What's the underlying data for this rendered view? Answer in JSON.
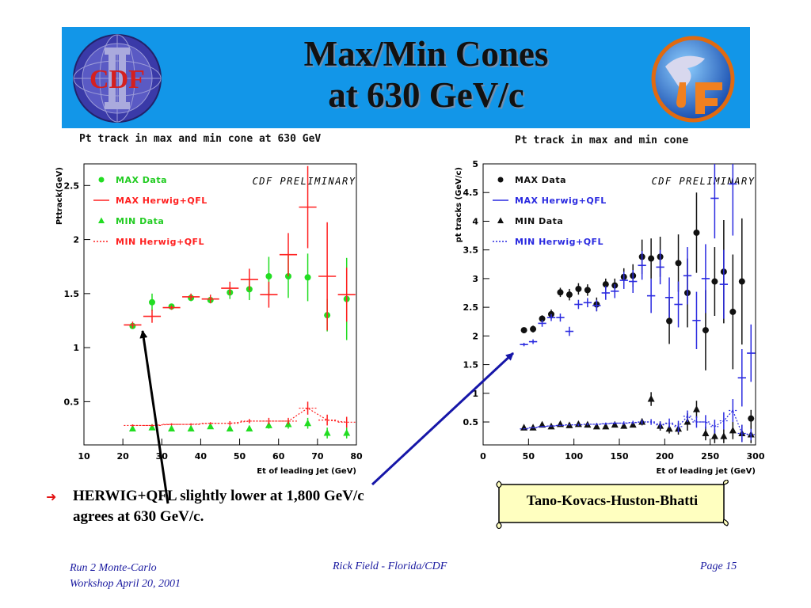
{
  "slide": {
    "title_line1": "Max/Min Cones",
    "title_line2": "at 630 GeV/c",
    "logo_left_text": "CDF",
    "bullet_line1": "HERWIG+QFL slightly lower at 1,800 GeV/c",
    "bullet_line2": "agrees at 630 GeV/c.",
    "scroll_label": "Tano-Kovacs-Huston-Bhatti",
    "footer_left_line1": "Run 2 Monte-Carlo",
    "footer_left_line2": "Workshop April 20, 2001",
    "footer_center": "Rick Field - Florida/CDF",
    "footer_right": "Page 15",
    "colors": {
      "banner": "#1296e8",
      "bullet": "#e31313",
      "footer": "#1a1aa0"
    }
  },
  "chart_data": [
    {
      "type": "scatter",
      "title": "Pt track in max and min cone at 630 GeV",
      "xlabel": "Et of leading Jet (GeV)",
      "ylabel": "Pttrack(GeV)",
      "annotation": "CDF PRELIMINARY",
      "xlim": [
        10,
        80
      ],
      "ylim": [
        0.1,
        2.7
      ],
      "xticks": [
        10,
        20,
        30,
        40,
        50,
        60,
        70,
        80
      ],
      "yticks": [
        0.5,
        1,
        1.5,
        2,
        2.5
      ],
      "legend": "top-left",
      "series": [
        {
          "name": "MAX Data",
          "color": "#22dd22",
          "marker": "circle",
          "style": "data",
          "x": [
            22.5,
            27.5,
            32.5,
            37.5,
            42.5,
            47.5,
            52.5,
            57.5,
            62.5,
            67.5,
            72.5,
            77.5
          ],
          "y": [
            1.2,
            1.42,
            1.38,
            1.46,
            1.44,
            1.51,
            1.54,
            1.66,
            1.66,
            1.65,
            1.3,
            1.45
          ],
          "err": [
            0.02,
            0.08,
            0.02,
            0.03,
            0.03,
            0.06,
            0.1,
            0.18,
            0.2,
            0.22,
            0.15,
            0.38
          ]
        },
        {
          "name": "MAX Herwig+QFL",
          "color": "#ff2020",
          "marker": "cross",
          "style": "solid",
          "x": [
            22.5,
            27.5,
            32.5,
            37.5,
            42.5,
            47.5,
            52.5,
            57.5,
            62.5,
            67.5,
            72.5,
            77.5
          ],
          "y": [
            1.21,
            1.29,
            1.37,
            1.47,
            1.45,
            1.55,
            1.63,
            1.49,
            1.86,
            2.3,
            1.66,
            1.49
          ],
          "err": [
            0.03,
            0.06,
            0.02,
            0.03,
            0.04,
            0.06,
            0.1,
            0.12,
            0.2,
            0.38,
            0.5,
            0.25
          ]
        },
        {
          "name": "MIN Data",
          "color": "#22dd22",
          "marker": "triangle",
          "style": "data",
          "x": [
            22.5,
            27.5,
            32.5,
            37.5,
            42.5,
            47.5,
            52.5,
            57.5,
            62.5,
            67.5,
            72.5,
            77.5
          ],
          "y": [
            0.25,
            0.26,
            0.25,
            0.25,
            0.27,
            0.25,
            0.25,
            0.28,
            0.29,
            0.3,
            0.21,
            0.21
          ],
          "err": [
            0.01,
            0.01,
            0.01,
            0.01,
            0.02,
            0.02,
            0.02,
            0.03,
            0.04,
            0.05,
            0.05,
            0.05
          ]
        },
        {
          "name": "MIN Herwig+QFL",
          "color": "#ff2020",
          "marker": "cross",
          "style": "dotted",
          "x": [
            22.5,
            27.5,
            32.5,
            37.5,
            42.5,
            47.5,
            52.5,
            57.5,
            62.5,
            67.5,
            72.5,
            77.5
          ],
          "y": [
            0.28,
            0.28,
            0.29,
            0.29,
            0.3,
            0.3,
            0.32,
            0.32,
            0.32,
            0.44,
            0.33,
            0.31
          ],
          "err": [
            0.01,
            0.01,
            0.01,
            0.01,
            0.01,
            0.02,
            0.02,
            0.03,
            0.03,
            0.06,
            0.05,
            0.05
          ]
        }
      ]
    },
    {
      "type": "scatter",
      "title": "Pt track in max and min cone",
      "xlabel": "Et of leading jet (GeV)",
      "ylabel": "pt tracks (GeV/c)",
      "annotation": "CDF PRELIMINARY",
      "xlim": [
        0,
        300
      ],
      "ylim": [
        0.1,
        5
      ],
      "xticks": [
        0,
        50,
        100,
        150,
        200,
        250,
        300
      ],
      "yticks": [
        0.5,
        1,
        1.5,
        2,
        2.5,
        3,
        3.5,
        4,
        4.5,
        5
      ],
      "legend": "top-left",
      "series": [
        {
          "name": "MAX Data",
          "color": "#111111",
          "marker": "circle",
          "style": "data",
          "x": [
            45,
            55,
            65,
            75,
            85,
            95,
            105,
            115,
            125,
            135,
            145,
            155,
            165,
            175,
            185,
            195,
            205,
            215,
            225,
            235,
            245,
            255,
            265,
            275,
            285,
            295
          ],
          "y": [
            2.1,
            2.12,
            2.3,
            2.38,
            2.76,
            2.72,
            2.82,
            2.8,
            2.55,
            2.9,
            2.88,
            3.03,
            3.05,
            3.38,
            3.35,
            3.38,
            2.26,
            3.27,
            2.75,
            3.8,
            2.1,
            2.95,
            3.12,
            2.42,
            2.95,
            0.56
          ],
          "err": [
            0.03,
            0.06,
            0.06,
            0.08,
            0.08,
            0.1,
            0.1,
            0.1,
            0.12,
            0.1,
            0.12,
            0.15,
            0.2,
            0.3,
            0.35,
            0.35,
            0.4,
            0.5,
            0.6,
            0.7,
            0.7,
            0.6,
            0.9,
            1.0,
            1.1,
            0.15
          ]
        },
        {
          "name": "MAX Herwig+QFL",
          "color": "#2a2ae0",
          "marker": "cross",
          "style": "solid",
          "x": [
            45,
            55,
            65,
            75,
            85,
            95,
            105,
            115,
            125,
            135,
            145,
            155,
            165,
            175,
            185,
            195,
            205,
            215,
            225,
            235,
            245,
            255,
            265,
            275,
            285,
            295
          ],
          "y": [
            1.85,
            1.9,
            2.22,
            2.32,
            2.32,
            2.08,
            2.55,
            2.58,
            2.53,
            2.75,
            2.78,
            2.97,
            2.95,
            3.23,
            2.7,
            3.2,
            2.67,
            2.55,
            3.05,
            2.27,
            3.0,
            4.4,
            2.9,
            4.65,
            1.27,
            1.7
          ],
          "err": [
            0.03,
            0.04,
            0.06,
            0.06,
            0.07,
            0.08,
            0.08,
            0.08,
            0.1,
            0.12,
            0.12,
            0.15,
            0.2,
            0.25,
            0.3,
            0.3,
            0.35,
            0.4,
            0.5,
            0.5,
            0.6,
            0.7,
            0.6,
            0.9,
            0.5,
            0.5
          ]
        },
        {
          "name": "MIN Data",
          "color": "#111111",
          "marker": "triangle",
          "style": "data",
          "x": [
            45,
            55,
            65,
            75,
            85,
            95,
            105,
            115,
            125,
            135,
            145,
            155,
            165,
            175,
            185,
            195,
            205,
            215,
            225,
            235,
            245,
            255,
            265,
            275,
            285,
            295
          ],
          "y": [
            0.4,
            0.4,
            0.45,
            0.42,
            0.46,
            0.44,
            0.46,
            0.45,
            0.42,
            0.42,
            0.45,
            0.43,
            0.45,
            0.5,
            0.9,
            0.43,
            0.38,
            0.38,
            0.5,
            0.72,
            0.3,
            0.25,
            0.25,
            0.35,
            0.3,
            0.28
          ],
          "err": [
            0.01,
            0.02,
            0.02,
            0.02,
            0.02,
            0.02,
            0.02,
            0.02,
            0.02,
            0.03,
            0.03,
            0.03,
            0.04,
            0.06,
            0.12,
            0.08,
            0.08,
            0.1,
            0.15,
            0.15,
            0.12,
            0.12,
            0.12,
            0.15,
            0.15,
            0.15
          ]
        },
        {
          "name": "MIN Herwig+QFL",
          "color": "#2a2ae0",
          "marker": "cross",
          "style": "dotted",
          "x": [
            45,
            55,
            65,
            75,
            85,
            95,
            105,
            115,
            125,
            135,
            145,
            155,
            165,
            175,
            185,
            195,
            205,
            215,
            225,
            235,
            245,
            255,
            265,
            275,
            285,
            295
          ],
          "y": [
            0.38,
            0.4,
            0.42,
            0.43,
            0.44,
            0.45,
            0.45,
            0.46,
            0.46,
            0.47,
            0.48,
            0.48,
            0.49,
            0.5,
            0.5,
            0.45,
            0.48,
            0.42,
            0.6,
            0.5,
            0.5,
            0.42,
            0.52,
            0.7,
            0.3,
            0.28
          ],
          "err": [
            0.01,
            0.01,
            0.01,
            0.01,
            0.01,
            0.01,
            0.02,
            0.02,
            0.02,
            0.02,
            0.02,
            0.03,
            0.03,
            0.04,
            0.05,
            0.06,
            0.08,
            0.1,
            0.1,
            0.1,
            0.12,
            0.12,
            0.15,
            0.2,
            0.15,
            0.1
          ]
        }
      ]
    }
  ]
}
